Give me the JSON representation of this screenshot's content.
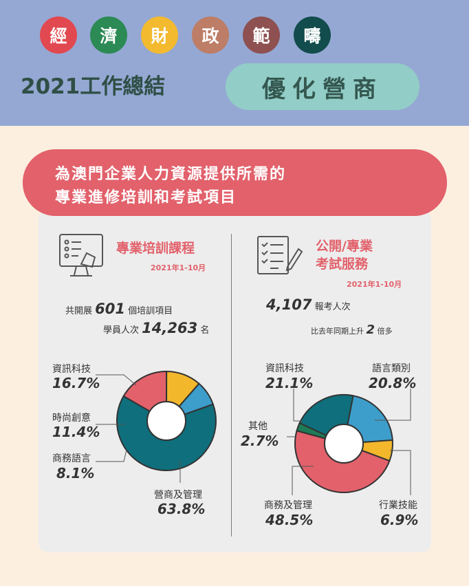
{
  "header": {
    "title_chars": [
      {
        "char": "經",
        "color": "#e2484f"
      },
      {
        "char": "濟",
        "color": "#2c8a55"
      },
      {
        "char": "財",
        "color": "#f3ba2f"
      },
      {
        "char": "政",
        "color": "#bd7d66"
      },
      {
        "char": "範",
        "color": "#8e5050"
      },
      {
        "char": "疇",
        "color": "#124c4c"
      }
    ],
    "year_title": "2021工作總結",
    "pill_label": "優化營商"
  },
  "banner": {
    "line1": "為澳門企業人力資源提供所需的",
    "line2": "專業進修培訓和考試項目"
  },
  "left": {
    "title": "專業培訓課程",
    "period": "2021年1-10月",
    "stat1_prefix": "共開展",
    "stat1_value": "601",
    "stat1_suffix": "個培訓項目",
    "stat2_prefix": "學員人次",
    "stat2_value": "14,263",
    "stat2_suffix": "名"
  },
  "right": {
    "title_line1": "公開/專業",
    "title_line2": "考試服務",
    "period": "2021年1-10月",
    "stat1_value": "4,107",
    "stat1_suffix": "報考人次",
    "stat2_prefix": "比去年同期上升",
    "stat2_value": "2",
    "stat2_suffix": "倍多"
  },
  "chart_data": [
    {
      "type": "pie",
      "categories": [
        "資訊科技",
        "時尚創意",
        "商務語言",
        "營商及管理"
      ],
      "values": [
        16.7,
        11.4,
        8.1,
        63.8
      ],
      "labels": [
        "16.7%",
        "11.4%",
        "8.1%",
        "63.8%"
      ],
      "colors": [
        "#e2616b",
        "#f3b72c",
        "#3d9ecb",
        "#0f6f7c"
      ]
    },
    {
      "type": "pie",
      "categories": [
        "語言類別",
        "行業技能",
        "商務及管理",
        "其他",
        "資訊科技"
      ],
      "values": [
        20.8,
        6.9,
        48.5,
        2.7,
        21.1
      ],
      "labels": [
        "20.8%",
        "6.9%",
        "48.5%",
        "2.7%",
        "21.1%"
      ],
      "colors": [
        "#3d9ecb",
        "#f3b72c",
        "#e2616b",
        "#1f7a56",
        "#0f6f7c"
      ]
    }
  ]
}
